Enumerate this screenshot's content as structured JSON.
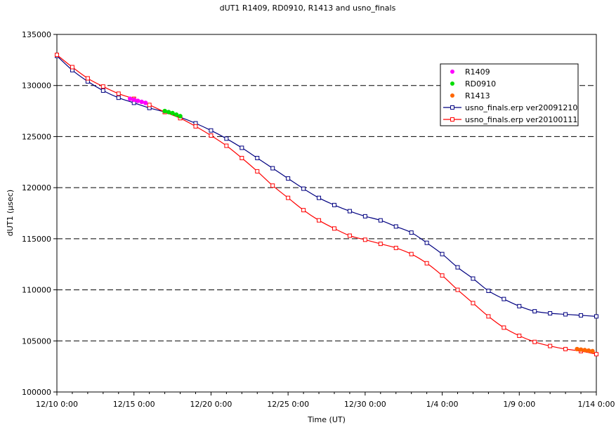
{
  "chart_data": {
    "type": "line",
    "title": "dUT1  R1409, RD0910, R1413 and usno_finals",
    "xlabel": "Time (UT)",
    "ylabel": "dUT1 (μsec)",
    "x_ticks": [
      "12/10 0:00",
      "12/15 0:00",
      "12/20 0:00",
      "12/25 0:00",
      "12/30 0:00",
      "1/4 0:00",
      "1/9 0:00",
      "1/14 0:00"
    ],
    "xlim": [
      "2009-12-10",
      "2010-01-14"
    ],
    "ylim": [
      100000,
      135000
    ],
    "y_ticks": [
      "100000",
      "105000",
      "110000",
      "115000",
      "120000",
      "125000",
      "130000",
      "135000"
    ],
    "grid": "horizontal dashed",
    "legend_position": "top-right",
    "series": [
      {
        "name": "R1409",
        "style": "points",
        "color": "#ff00ff",
        "x": [
          "2009-12-14 18:00",
          "2009-12-15 00:00",
          "2009-12-15 06:00",
          "2009-12-15 12:00",
          "2009-12-15 18:00"
        ],
        "y": [
          128700,
          128600,
          128500,
          128400,
          128300
        ]
      },
      {
        "name": "RD0910",
        "style": "points",
        "color": "#00dd00",
        "x": [
          "2009-12-17 00:00",
          "2009-12-17 06:00",
          "2009-12-17 12:00",
          "2009-12-17 18:00",
          "2009-12-18 00:00"
        ],
        "y": [
          127500,
          127400,
          127300,
          127150,
          127000
        ]
      },
      {
        "name": "R1413",
        "style": "points",
        "color": "#ff6600",
        "x": [
          "2010-01-12 18:00",
          "2010-01-13 00:00",
          "2010-01-13 06:00",
          "2010-01-13 12:00",
          "2010-01-13 18:00"
        ],
        "y": [
          104200,
          104150,
          104100,
          104050,
          104000
        ]
      },
      {
        "name": "usno_finals.erp ver20091210",
        "style": "line-square",
        "color": "#000080",
        "x": [
          "2009-12-10",
          "2009-12-11",
          "2009-12-12",
          "2009-12-13",
          "2009-12-14",
          "2009-12-15",
          "2009-12-16",
          "2009-12-17",
          "2009-12-18",
          "2009-12-19",
          "2009-12-20",
          "2009-12-21",
          "2009-12-22",
          "2009-12-23",
          "2009-12-24",
          "2009-12-25",
          "2009-12-26",
          "2009-12-27",
          "2009-12-28",
          "2009-12-29",
          "2009-12-30",
          "2009-12-31",
          "2010-01-01",
          "2010-01-02",
          "2010-01-03",
          "2010-01-04",
          "2010-01-05",
          "2010-01-06",
          "2010-01-07",
          "2010-01-08",
          "2010-01-09",
          "2010-01-10",
          "2010-01-11",
          "2010-01-12",
          "2010-01-13",
          "2010-01-14"
        ],
        "y": [
          132900,
          131500,
          130400,
          129500,
          128800,
          128300,
          127800,
          127400,
          126900,
          126300,
          125600,
          124800,
          123900,
          122900,
          121900,
          120900,
          119900,
          119000,
          118300,
          117700,
          117200,
          116800,
          116200,
          115600,
          114600,
          113500,
          112200,
          111100,
          109900,
          109100,
          108400,
          107900,
          107700,
          107600,
          107500,
          107400
        ]
      },
      {
        "name": "usno_finals.erp ver20100111",
        "style": "line-square",
        "color": "#ff0000",
        "x": [
          "2009-12-10",
          "2009-12-11",
          "2009-12-12",
          "2009-12-13",
          "2009-12-14",
          "2009-12-15",
          "2009-12-16",
          "2009-12-17",
          "2009-12-18",
          "2009-12-19",
          "2009-12-20",
          "2009-12-21",
          "2009-12-22",
          "2009-12-23",
          "2009-12-24",
          "2009-12-25",
          "2009-12-26",
          "2009-12-27",
          "2009-12-28",
          "2009-12-29",
          "2009-12-30",
          "2009-12-31",
          "2010-01-01",
          "2010-01-02",
          "2010-01-03",
          "2010-01-04",
          "2010-01-05",
          "2010-01-06",
          "2010-01-07",
          "2010-01-08",
          "2010-01-09",
          "2010-01-10",
          "2010-01-11",
          "2010-01-12",
          "2010-01-13",
          "2010-01-14"
        ],
        "y": [
          133000,
          131800,
          130700,
          129900,
          129200,
          128700,
          128100,
          127400,
          126800,
          126000,
          125100,
          124100,
          122900,
          121600,
          120200,
          119000,
          117800,
          116800,
          116000,
          115300,
          114900,
          114500,
          114100,
          113500,
          112600,
          111400,
          110000,
          108700,
          107400,
          106300,
          105500,
          104900,
          104500,
          104200,
          104000,
          103700
        ]
      }
    ]
  }
}
